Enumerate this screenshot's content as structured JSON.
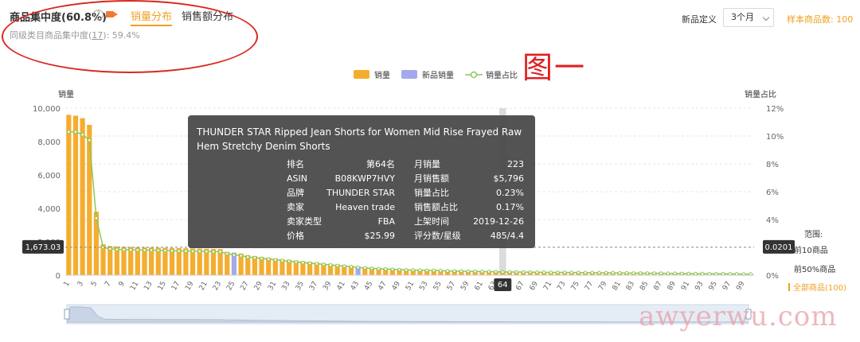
{
  "header": {
    "title": "商品集中度(60.8%)",
    "help_icon": "?",
    "tabs": [
      {
        "label": "销量分布",
        "active": true
      },
      {
        "label": "销售额分布",
        "active": false
      }
    ],
    "subtitle_prefix": "同级类目商品集中度(",
    "subtitle_link": "17",
    "subtitle_suffix": "):  59.4%"
  },
  "controls": {
    "definition_label": "新品定义",
    "definition_value": "3个月",
    "sample_label": "样本商品数: 100"
  },
  "annotation": {
    "figure_label": "图一"
  },
  "watermark": {
    "text": "awyerwu.com"
  },
  "colors": {
    "bar": "#f5ad2f",
    "new_bar": "#a3a9ea",
    "line": "#8cc85a",
    "accent": "#f0a020"
  },
  "chart_data": {
    "type": "bar",
    "legend": [
      {
        "label": "销量",
        "color": "#f5ad2f",
        "kind": "bar"
      },
      {
        "label": "新品销量",
        "color": "#a3a9ea",
        "kind": "bar"
      },
      {
        "label": "销量占比",
        "color": "#8cc85a",
        "kind": "line"
      }
    ],
    "legend_position": "top-center",
    "ylabel_left": "销量",
    "ylabel_right": "销量占比",
    "ylim_left": [
      0,
      10000
    ],
    "yticks_left": [
      "0",
      "2,000",
      "4,000",
      "6,000",
      "8,000",
      "10,000"
    ],
    "ylim_right": [
      0,
      12
    ],
    "yticks_right": [
      "0%",
      "2%",
      "4%",
      "6%",
      "8%",
      "10%",
      "12%"
    ],
    "xticks": [
      "1",
      "3",
      "5",
      "7",
      "9",
      "11",
      "13",
      "15",
      "17",
      "19",
      "21",
      "23",
      "25",
      "27",
      "29",
      "31",
      "33",
      "35",
      "37",
      "39",
      "41",
      "43",
      "45",
      "47",
      "49",
      "51",
      "53",
      "55",
      "57",
      "59",
      "61",
      "63",
      "65",
      "67",
      "69",
      "71",
      "73",
      "75",
      "77",
      "79",
      "81",
      "83",
      "85",
      "87",
      "89",
      "91",
      "93",
      "95",
      "97",
      "99"
    ],
    "categories_count": 100,
    "new_product_ranks": [
      25,
      43
    ],
    "highlight_rank": 64,
    "highlight_label": "64",
    "crosshair_left_label": "1,673.03",
    "crosshair_right_label": "0.0201",
    "crosshair_value": 1673.03,
    "grid": true,
    "grid_style": "dashed-horizontal",
    "values": [
      9600,
      9550,
      9400,
      9000,
      3800,
      1850,
      1750,
      1720,
      1700,
      1690,
      1680,
      1670,
      1660,
      1650,
      1640,
      1630,
      1620,
      1610,
      1600,
      1590,
      1580,
      1570,
      1560,
      1400,
      1350,
      1300,
      1200,
      1150,
      1100,
      1050,
      1000,
      960,
      920,
      880,
      840,
      800,
      760,
      720,
      680,
      640,
      600,
      560,
      520,
      480,
      450,
      430,
      410,
      390,
      370,
      350,
      340,
      330,
      320,
      310,
      300,
      290,
      280,
      270,
      260,
      250,
      245,
      240,
      235,
      223,
      220,
      215,
      210,
      205,
      200,
      195,
      190,
      186,
      182,
      178,
      174,
      170,
      166,
      162,
      158,
      154,
      150,
      146,
      142,
      138,
      134,
      130,
      126,
      122,
      118,
      114,
      110,
      106,
      102,
      98,
      94,
      90,
      86,
      82,
      78,
      74
    ],
    "share_percent": [
      10.3,
      10.3,
      10.1,
      9.7,
      4.1,
      2.0,
      1.9,
      1.85,
      1.83,
      1.82,
      1.81,
      1.8,
      1.79,
      1.78,
      1.77,
      1.75,
      1.74,
      1.73,
      1.72,
      1.71,
      1.7,
      1.69,
      1.68,
      1.55,
      1.45,
      1.4,
      1.3,
      1.25,
      1.2,
      1.15,
      1.1,
      1.05,
      1.0,
      0.95,
      0.9,
      0.86,
      0.82,
      0.78,
      0.73,
      0.69,
      0.65,
      0.61,
      0.56,
      0.52,
      0.49,
      0.46,
      0.44,
      0.42,
      0.4,
      0.38,
      0.37,
      0.36,
      0.35,
      0.34,
      0.33,
      0.31,
      0.3,
      0.29,
      0.28,
      0.27,
      0.26,
      0.26,
      0.25,
      0.23,
      0.23,
      0.23,
      0.22,
      0.22,
      0.21,
      0.21,
      0.2,
      0.2,
      0.2,
      0.19,
      0.19,
      0.18,
      0.18,
      0.17,
      0.17,
      0.17,
      0.16,
      0.16,
      0.15,
      0.15,
      0.14,
      0.14,
      0.14,
      0.13,
      0.13,
      0.12,
      0.12,
      0.11,
      0.11,
      0.1,
      0.1,
      0.1,
      0.09,
      0.09,
      0.08,
      0.08
    ]
  },
  "tooltip": {
    "title": "THUNDER STAR Ripped Jean Shorts for Women Mid Rise Frayed Raw Hem Stretchy Denim Shorts",
    "rows": [
      {
        "k1": "排名",
        "v1": "第64名",
        "k2": "月销量",
        "v2": "223"
      },
      {
        "k1": "ASIN",
        "v1": "B08KWP7HVY",
        "k2": "月销售额",
        "v2": "$5,796"
      },
      {
        "k1": "品牌",
        "v1": "THUNDER STAR",
        "k2": "销量占比",
        "v2": "0.23%"
      },
      {
        "k1": "卖家",
        "v1": "Heaven trade",
        "k2": "销售额占比",
        "v2": "0.17%"
      },
      {
        "k1": "卖家类型",
        "v1": "FBA",
        "k2": "上架时间",
        "v2": "2019-12-26"
      },
      {
        "k1": "价格",
        "v1": "$25.99",
        "k2": "评分数/星级",
        "v2": "485/4.4"
      }
    ]
  },
  "scope": {
    "label": "范围:",
    "options": [
      {
        "label": "前10商品",
        "active": false
      },
      {
        "label": "前50%商品",
        "active": false
      },
      {
        "label": "全部商品(100)",
        "active": true
      }
    ]
  }
}
